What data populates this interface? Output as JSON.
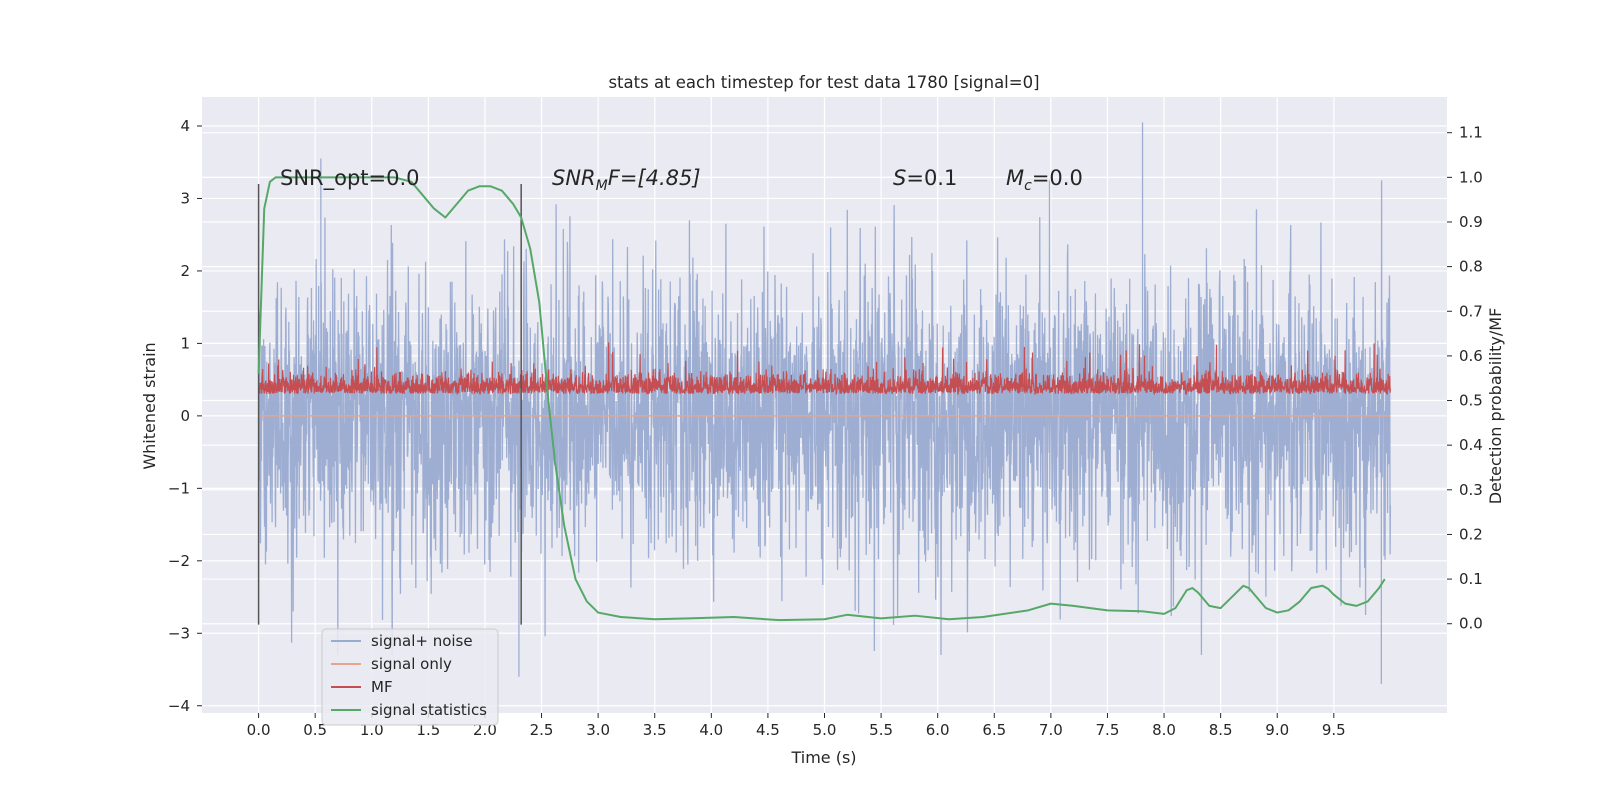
{
  "chart_data": {
    "type": "line",
    "title": "stats at each timestep for test data 1780 [signal=0]",
    "xlabel": "Time (s)",
    "ylabel": "Whitened strain",
    "ylabel_right": "Detection probability/MF",
    "xlim": [
      -0.5,
      10.5
    ],
    "ylim": [
      -4.1,
      4.4
    ],
    "ylim_right": [
      -0.2,
      1.18
    ],
    "x_ticks": [
      "0.0",
      "0.5",
      "1.0",
      "1.5",
      "2.0",
      "2.5",
      "3.0",
      "3.5",
      "4.0",
      "4.5",
      "5.0",
      "5.5",
      "6.0",
      "6.5",
      "7.0",
      "7.5",
      "8.0",
      "8.5",
      "9.0",
      "9.5"
    ],
    "y_ticks": [
      "4",
      "3",
      "2",
      "1",
      "0",
      "−1",
      "−2",
      "−3",
      "−4"
    ],
    "y_ticks_right": [
      "1.1",
      "1.0",
      "0.9",
      "0.8",
      "0.7",
      "0.6",
      "0.5",
      "0.4",
      "0.3",
      "0.2",
      "0.1",
      "0.0"
    ],
    "grid": true,
    "legend_position": "lower-left",
    "annotations": {
      "snr_opt": "SNR_opt=0.0",
      "snr_mf_prefix": "SNR",
      "snr_mf_sub": "M",
      "snr_mf_suffix": "F=[4.85]",
      "s_var": "S",
      "s_val": "=0.1",
      "mc_var": "M",
      "mc_sub": "c",
      "mc_val": "=0.0"
    },
    "vertical_markers": [
      0.0,
      2.32
    ],
    "series": [
      {
        "name": "signal+ noise",
        "color": "#9aabd0",
        "description_range": "whitened strain noise, approx within [-3.7, 4.05]",
        "envelope": {
          "x_start": 0.0,
          "x_end": 10.0,
          "low": -3.7,
          "high": 4.05,
          "typical_high": 1.6,
          "typical_low": -1.6
        }
      },
      {
        "name": "signal only",
        "color": "#e8a58a",
        "x": [
          0.0,
          10.0
        ],
        "y": [
          0.0,
          0.0
        ]
      },
      {
        "name": "MF",
        "color": "#c44e52",
        "axis": "right",
        "envelope": {
          "x_start": 0.0,
          "x_end": 10.0,
          "low": 0.48,
          "high": 0.65,
          "typical_high": 0.56
        }
      },
      {
        "name": "signal statistics",
        "color": "#55a868",
        "axis": "right",
        "x": [
          0.0,
          0.05,
          0.1,
          0.15,
          0.25,
          0.4,
          0.6,
          0.8,
          1.0,
          1.2,
          1.35,
          1.45,
          1.55,
          1.65,
          1.75,
          1.85,
          1.95,
          2.05,
          2.15,
          2.25,
          2.32,
          2.4,
          2.48,
          2.56,
          2.62,
          2.7,
          2.8,
          2.9,
          3.0,
          3.2,
          3.5,
          3.8,
          4.2,
          4.6,
          5.0,
          5.2,
          5.5,
          5.8,
          6.1,
          6.4,
          6.8,
          7.0,
          7.2,
          7.5,
          7.8,
          8.0,
          8.1,
          8.2,
          8.25,
          8.3,
          8.4,
          8.5,
          8.6,
          8.7,
          8.75,
          8.8,
          8.9,
          9.0,
          9.1,
          9.2,
          9.3,
          9.4,
          9.45,
          9.5,
          9.6,
          9.7,
          9.8,
          9.9,
          9.95
        ],
        "y": [
          0.56,
          0.93,
          0.99,
          1.0,
          1.0,
          1.0,
          1.0,
          1.0,
          1.0,
          1.0,
          0.99,
          0.96,
          0.93,
          0.91,
          0.94,
          0.97,
          0.98,
          0.98,
          0.97,
          0.94,
          0.91,
          0.84,
          0.72,
          0.5,
          0.36,
          0.22,
          0.1,
          0.05,
          0.025,
          0.015,
          0.01,
          0.012,
          0.015,
          0.008,
          0.01,
          0.02,
          0.012,
          0.018,
          0.01,
          0.015,
          0.03,
          0.045,
          0.04,
          0.03,
          0.028,
          0.022,
          0.035,
          0.075,
          0.08,
          0.07,
          0.04,
          0.035,
          0.06,
          0.085,
          0.08,
          0.065,
          0.035,
          0.025,
          0.03,
          0.05,
          0.08,
          0.085,
          0.078,
          0.065,
          0.045,
          0.04,
          0.05,
          0.08,
          0.1
        ]
      }
    ]
  },
  "legend": {
    "items": [
      {
        "label": "signal+ noise",
        "color": "#9aabd0"
      },
      {
        "label": "signal only",
        "color": "#e8a58a"
      },
      {
        "label": "MF",
        "color": "#c44e52"
      },
      {
        "label": "signal statistics",
        "color": "#55a868"
      }
    ]
  },
  "colors": {
    "plot_background": "#eaeaf2",
    "grid": "#ffffff",
    "marker_line": "#555555"
  }
}
